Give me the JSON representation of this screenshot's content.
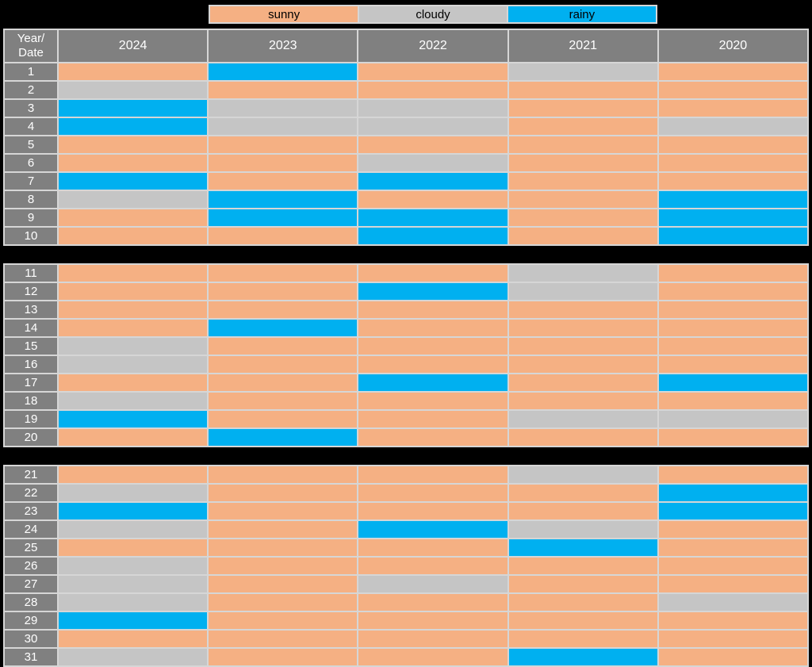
{
  "page": {
    "background": "#000000"
  },
  "colors": {
    "sunny": "#F5B083",
    "cloudy": "#C5C5C5",
    "rainy": "#00B0F0",
    "header_bg": "#808080",
    "grid_line": "#D6D6D6",
    "header_text": "#FFFFFF",
    "legend_text": "#000000"
  },
  "legend": {
    "items": [
      {
        "label": "sunny",
        "color": "#F5B083"
      },
      {
        "label": "cloudy",
        "color": "#C5C5C5"
      },
      {
        "label": "rainy",
        "color": "#00B0F0"
      }
    ]
  },
  "header": {
    "corner_line1": "Year/",
    "corner_line2": "Date"
  },
  "chart_data": {
    "type": "table",
    "title": "",
    "row_axis_label": "Date",
    "column_axis_label": "Year",
    "columns": [
      "2024",
      "2023",
      "2022",
      "2021",
      "2020"
    ],
    "legend_values": [
      "sunny",
      "cloudy",
      "rainy"
    ],
    "sections": [
      {
        "start": 1,
        "end": 10
      },
      {
        "start": 11,
        "end": 20
      },
      {
        "start": 21,
        "end": 31
      }
    ],
    "rows": [
      {
        "date": "1",
        "values": [
          "sunny",
          "rainy",
          "sunny",
          "cloudy",
          "sunny"
        ]
      },
      {
        "date": "2",
        "values": [
          "cloudy",
          "sunny",
          "sunny",
          "sunny",
          "sunny"
        ]
      },
      {
        "date": "3",
        "values": [
          "rainy",
          "cloudy",
          "cloudy",
          "sunny",
          "sunny"
        ]
      },
      {
        "date": "4",
        "values": [
          "rainy",
          "cloudy",
          "cloudy",
          "sunny",
          "cloudy"
        ]
      },
      {
        "date": "5",
        "values": [
          "sunny",
          "sunny",
          "sunny",
          "sunny",
          "sunny"
        ]
      },
      {
        "date": "6",
        "values": [
          "sunny",
          "sunny",
          "cloudy",
          "sunny",
          "sunny"
        ]
      },
      {
        "date": "7",
        "values": [
          "rainy",
          "sunny",
          "rainy",
          "sunny",
          "sunny"
        ]
      },
      {
        "date": "8",
        "values": [
          "cloudy",
          "rainy",
          "sunny",
          "sunny",
          "rainy"
        ]
      },
      {
        "date": "9",
        "values": [
          "sunny",
          "rainy",
          "rainy",
          "sunny",
          "rainy"
        ]
      },
      {
        "date": "10",
        "values": [
          "sunny",
          "sunny",
          "rainy",
          "sunny",
          "rainy"
        ]
      },
      {
        "date": "11",
        "values": [
          "sunny",
          "sunny",
          "sunny",
          "cloudy",
          "sunny"
        ]
      },
      {
        "date": "12",
        "values": [
          "sunny",
          "sunny",
          "rainy",
          "cloudy",
          "sunny"
        ]
      },
      {
        "date": "13",
        "values": [
          "sunny",
          "sunny",
          "sunny",
          "sunny",
          "sunny"
        ]
      },
      {
        "date": "14",
        "values": [
          "sunny",
          "rainy",
          "sunny",
          "sunny",
          "sunny"
        ]
      },
      {
        "date": "15",
        "values": [
          "cloudy",
          "sunny",
          "sunny",
          "sunny",
          "sunny"
        ]
      },
      {
        "date": "16",
        "values": [
          "cloudy",
          "sunny",
          "sunny",
          "sunny",
          "sunny"
        ]
      },
      {
        "date": "17",
        "values": [
          "sunny",
          "sunny",
          "rainy",
          "sunny",
          "rainy"
        ]
      },
      {
        "date": "18",
        "values": [
          "cloudy",
          "sunny",
          "sunny",
          "sunny",
          "sunny"
        ]
      },
      {
        "date": "19",
        "values": [
          "rainy",
          "sunny",
          "sunny",
          "cloudy",
          "cloudy"
        ]
      },
      {
        "date": "20",
        "values": [
          "sunny",
          "rainy",
          "sunny",
          "sunny",
          "sunny"
        ]
      },
      {
        "date": "21",
        "values": [
          "sunny",
          "sunny",
          "sunny",
          "cloudy",
          "sunny"
        ]
      },
      {
        "date": "22",
        "values": [
          "cloudy",
          "sunny",
          "sunny",
          "sunny",
          "rainy"
        ]
      },
      {
        "date": "23",
        "values": [
          "rainy",
          "sunny",
          "sunny",
          "sunny",
          "rainy"
        ]
      },
      {
        "date": "24",
        "values": [
          "cloudy",
          "sunny",
          "rainy",
          "cloudy",
          "sunny"
        ]
      },
      {
        "date": "25",
        "values": [
          "sunny",
          "sunny",
          "sunny",
          "rainy",
          "sunny"
        ]
      },
      {
        "date": "26",
        "values": [
          "cloudy",
          "sunny",
          "sunny",
          "sunny",
          "sunny"
        ]
      },
      {
        "date": "27",
        "values": [
          "cloudy",
          "sunny",
          "cloudy",
          "sunny",
          "sunny"
        ]
      },
      {
        "date": "28",
        "values": [
          "cloudy",
          "sunny",
          "sunny",
          "sunny",
          "cloudy"
        ]
      },
      {
        "date": "29",
        "values": [
          "rainy",
          "sunny",
          "sunny",
          "sunny",
          "sunny"
        ]
      },
      {
        "date": "30",
        "values": [
          "sunny",
          "sunny",
          "sunny",
          "sunny",
          "sunny"
        ]
      },
      {
        "date": "31",
        "values": [
          "cloudy",
          "sunny",
          "sunny",
          "rainy",
          "sunny"
        ]
      }
    ]
  }
}
